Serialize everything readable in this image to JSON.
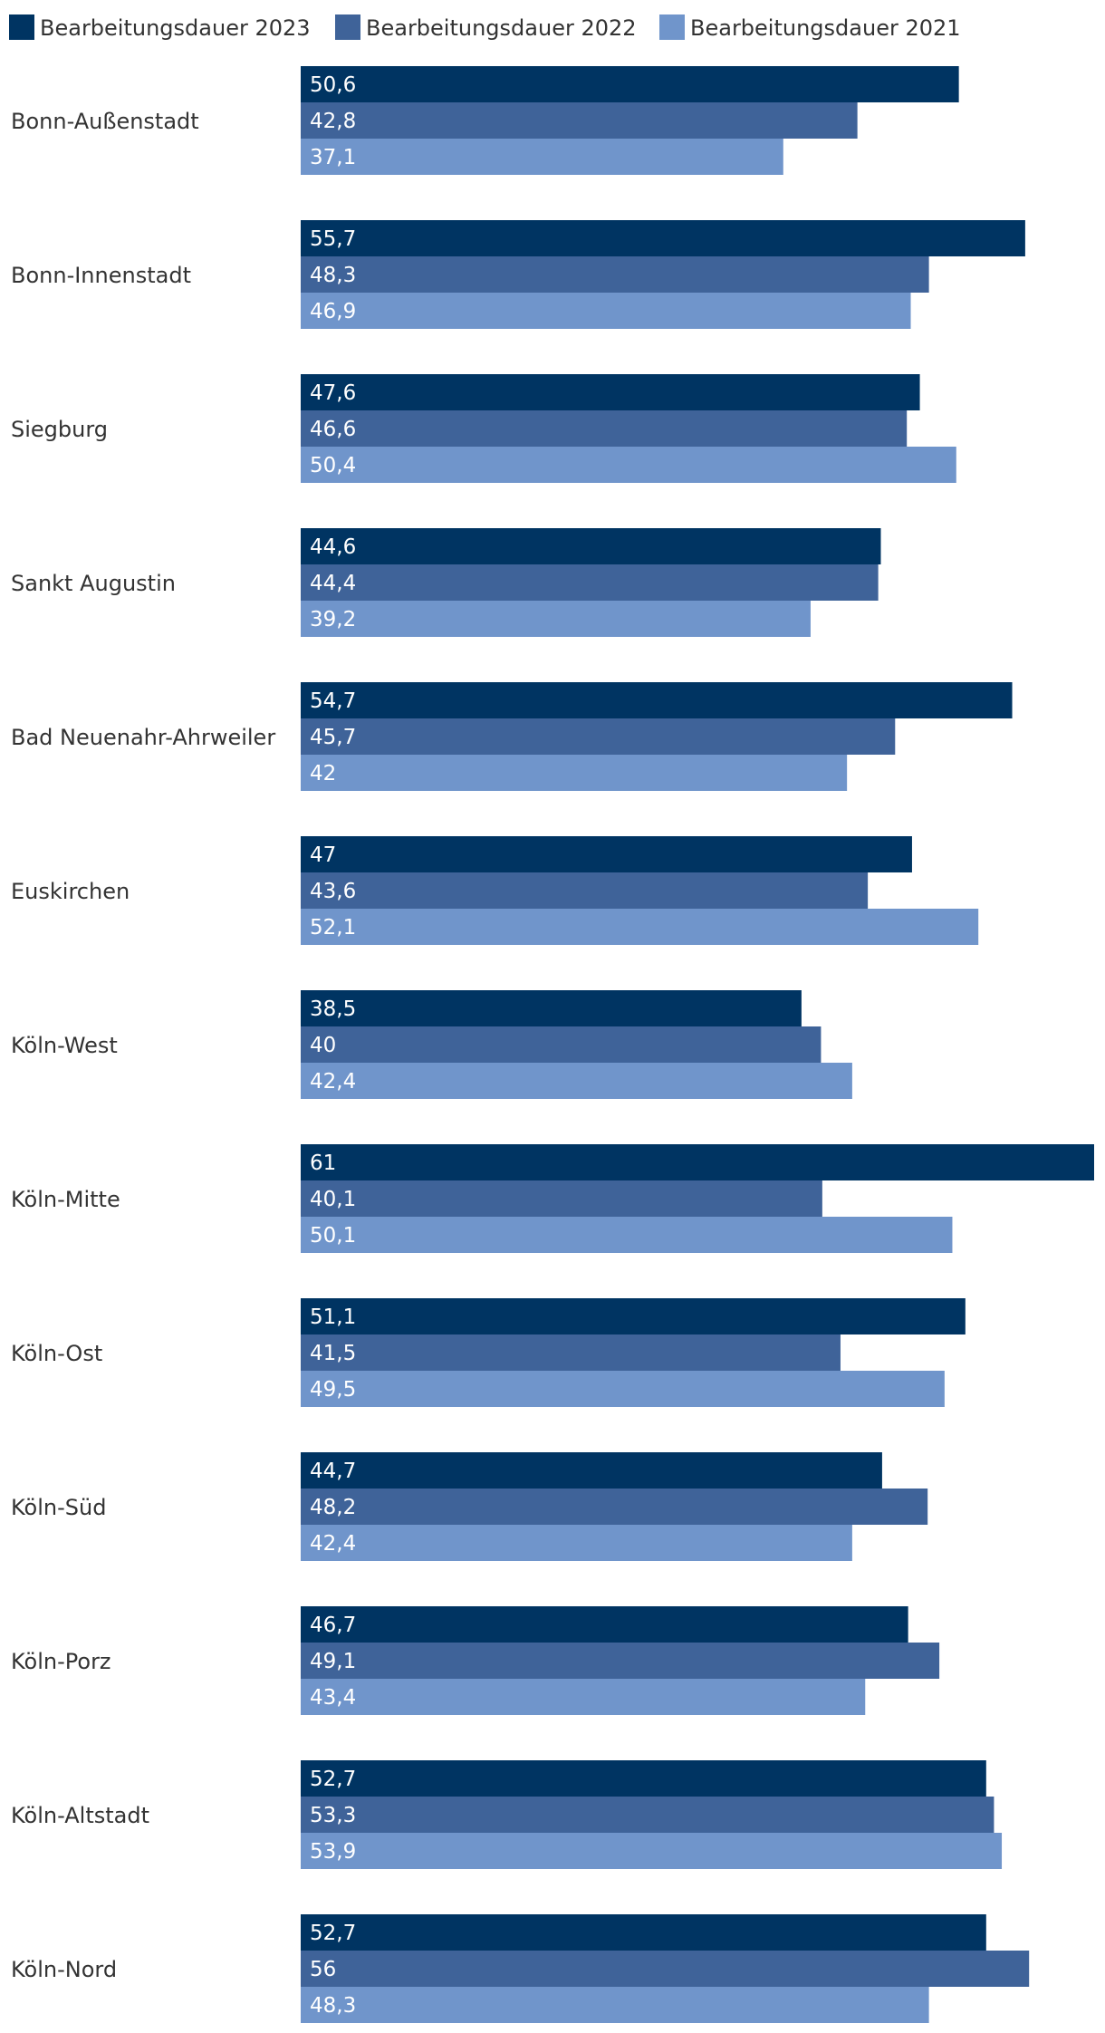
{
  "chart_data": {
    "type": "bar",
    "orientation": "horizontal",
    "title": "",
    "xlabel": "",
    "ylabel": "",
    "xlim": [
      0,
      61
    ],
    "grid": false,
    "legend_position": "top-left",
    "categories": [
      "Bonn-Außenstadt",
      "Bonn-Innenstadt",
      "Siegburg",
      "Sankt Augustin",
      "Bad Neuenahr-Ahrweiler",
      "Euskirchen",
      "Köln-West",
      "Köln-Mitte",
      "Köln-Ost",
      "Köln-Süd",
      "Köln-Porz",
      "Köln-Altstadt",
      "Köln-Nord"
    ],
    "series": [
      {
        "name": "Bearbeitungsdauer 2023",
        "color": "#003462",
        "values": [
          50.6,
          55.7,
          47.6,
          44.6,
          54.7,
          47,
          38.5,
          61,
          51.1,
          44.7,
          46.7,
          52.7,
          52.7
        ],
        "labels": [
          "50,6",
          "55,7",
          "47,6",
          "44,6",
          "54,7",
          "47",
          "38,5",
          "61",
          "51,1",
          "44,7",
          "46,7",
          "52,7",
          "52,7"
        ]
      },
      {
        "name": "Bearbeitungsdauer 2022",
        "color": "#3f6399",
        "values": [
          42.8,
          48.3,
          46.6,
          44.4,
          45.7,
          43.6,
          40,
          40.1,
          41.5,
          48.2,
          49.1,
          53.3,
          56
        ],
        "labels": [
          "42,8",
          "48,3",
          "46,6",
          "44,4",
          "45,7",
          "43,6",
          "40",
          "40,1",
          "41,5",
          "48,2",
          "49,1",
          "53,3",
          "56"
        ]
      },
      {
        "name": "Bearbeitungsdauer 2021",
        "color": "#7095cb",
        "values": [
          37.1,
          46.9,
          50.4,
          39.2,
          42,
          52.1,
          42.4,
          50.1,
          49.5,
          42.4,
          43.4,
          53.9,
          48.3
        ],
        "labels": [
          "37,1",
          "46,9",
          "50,4",
          "39,2",
          "42",
          "52,1",
          "42,4",
          "50,1",
          "49,5",
          "42,4",
          "43,4",
          "53,9",
          "48,3"
        ]
      }
    ]
  }
}
